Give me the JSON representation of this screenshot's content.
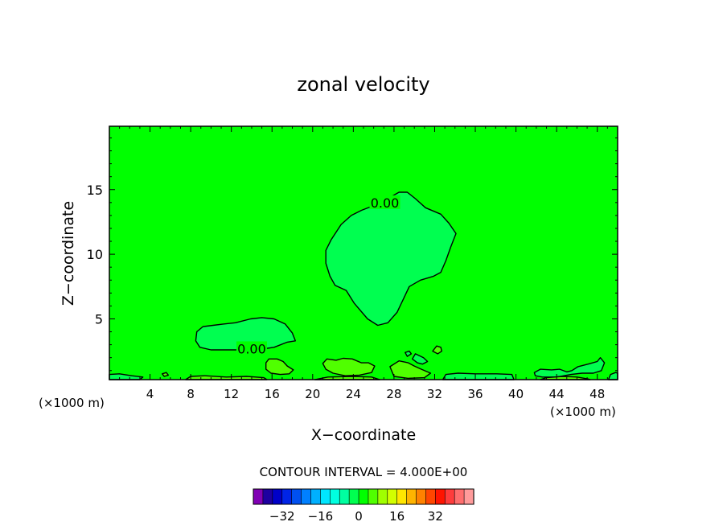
{
  "chart_data": {
    "type": "heatmap",
    "title": "zonal velocity",
    "xlabel": "X−coordinate",
    "ylabel": "Z−coordinate",
    "x_unit_left": "(×1000 m)",
    "x_unit_right": "(×1000 m)",
    "xlim": [
      0,
      50
    ],
    "ylim": [
      0.3,
      19.9
    ],
    "x_ticks": [
      4,
      8,
      12,
      16,
      20,
      24,
      28,
      32,
      36,
      40,
      44,
      48
    ],
    "x_tick_labels": [
      "4",
      "8",
      "12",
      "16",
      "20",
      "24",
      "28",
      "32",
      "36",
      "40",
      "44",
      "48"
    ],
    "y_ticks": [
      5,
      10,
      15
    ],
    "y_tick_labels": [
      "5",
      "10",
      "15"
    ],
    "background_value": 2,
    "contour_interval_text": "CONTOUR INTERVAL = 4.000E+00",
    "contour_labels": [
      {
        "text": "0.00",
        "x": 27.1,
        "y": 14.0
      },
      {
        "text": "0.00",
        "x": 14.0,
        "y": 2.7
      }
    ],
    "regions": [
      {
        "value": -2,
        "points": [
          [
            21.8,
            11.1
          ],
          [
            21.3,
            10.3
          ],
          [
            21.3,
            9.3
          ],
          [
            21.7,
            8.3
          ],
          [
            22.2,
            7.6
          ],
          [
            23.3,
            7.2
          ],
          [
            24.1,
            6.2
          ],
          [
            25.4,
            5.0
          ],
          [
            26.4,
            4.5
          ],
          [
            27.4,
            4.7
          ],
          [
            28.3,
            5.5
          ],
          [
            28.9,
            6.5
          ],
          [
            29.5,
            7.5
          ],
          [
            30.6,
            8.0
          ],
          [
            31.9,
            8.3
          ],
          [
            32.6,
            8.6
          ],
          [
            33.1,
            9.5
          ],
          [
            33.6,
            10.6
          ],
          [
            34.1,
            11.6
          ],
          [
            33.4,
            12.4
          ],
          [
            32.6,
            13.1
          ],
          [
            31.1,
            13.6
          ],
          [
            30.1,
            14.3
          ],
          [
            29.3,
            14.8
          ],
          [
            28.5,
            14.8
          ],
          [
            27.6,
            14.4
          ],
          [
            26.7,
            14.2
          ],
          [
            25.8,
            13.7
          ],
          [
            24.8,
            13.4
          ],
          [
            23.8,
            13.0
          ],
          [
            22.8,
            12.3
          ]
        ]
      },
      {
        "value": -2,
        "points": [
          [
            8.6,
            4.0
          ],
          [
            8.5,
            3.3
          ],
          [
            8.9,
            2.8
          ],
          [
            10.0,
            2.6
          ],
          [
            11.4,
            2.6
          ],
          [
            12.8,
            2.6
          ],
          [
            14.5,
            2.6
          ],
          [
            16.2,
            2.8
          ],
          [
            17.5,
            3.2
          ],
          [
            18.3,
            3.3
          ],
          [
            18.0,
            3.9
          ],
          [
            17.3,
            4.6
          ],
          [
            16.2,
            5.0
          ],
          [
            15.0,
            5.1
          ],
          [
            13.9,
            5.0
          ],
          [
            12.4,
            4.7
          ],
          [
            11.2,
            4.6
          ],
          [
            10.2,
            4.5
          ],
          [
            9.2,
            4.4
          ]
        ]
      },
      {
        "value": -2,
        "points": [
          [
            41.8,
            0.85
          ],
          [
            42.4,
            1.1
          ],
          [
            43.5,
            1.05
          ],
          [
            44.3,
            1.1
          ],
          [
            45.0,
            0.9
          ],
          [
            45.5,
            1.0
          ],
          [
            46.1,
            1.3
          ],
          [
            47.1,
            1.5
          ],
          [
            48.0,
            1.7
          ],
          [
            48.3,
            2.0
          ],
          [
            48.7,
            1.6
          ],
          [
            48.4,
            1.0
          ],
          [
            47.6,
            0.8
          ],
          [
            46.5,
            0.8
          ],
          [
            45.4,
            0.7
          ],
          [
            44.0,
            0.5
          ],
          [
            42.6,
            0.5
          ],
          [
            41.9,
            0.6
          ]
        ]
      },
      {
        "value": -2,
        "points": [
          [
            30.1,
            2.3
          ],
          [
            30.9,
            2.0
          ],
          [
            31.3,
            1.7
          ],
          [
            30.8,
            1.5
          ],
          [
            30.3,
            1.6
          ],
          [
            29.8,
            1.9
          ]
        ]
      },
      {
        "value": -2,
        "points": [
          [
            29.1,
            2.4
          ],
          [
            29.5,
            2.5
          ],
          [
            29.7,
            2.3
          ],
          [
            29.3,
            2.1
          ]
        ]
      },
      {
        "value": -2,
        "points": [
          [
            0,
            0.7
          ],
          [
            1.0,
            0.75
          ],
          [
            2.2,
            0.6
          ],
          [
            3.3,
            0.5
          ],
          [
            3.0,
            0.3
          ],
          [
            0,
            0.3
          ]
        ]
      },
      {
        "value": -2,
        "points": [
          [
            49.1,
            0.3
          ],
          [
            49.3,
            0.7
          ],
          [
            49.8,
            0.85
          ],
          [
            50,
            0.8
          ],
          [
            50,
            0.3
          ]
        ]
      },
      {
        "value": -2,
        "points": [
          [
            32.8,
            0.3
          ],
          [
            33.1,
            0.7
          ],
          [
            34.3,
            0.8
          ],
          [
            36.0,
            0.75
          ],
          [
            38.1,
            0.75
          ],
          [
            39.6,
            0.7
          ],
          [
            39.8,
            0.3
          ]
        ]
      },
      {
        "value": 6,
        "points": [
          [
            15.4,
            1.6
          ],
          [
            15.7,
            1.9
          ],
          [
            16.5,
            1.9
          ],
          [
            17.1,
            1.7
          ],
          [
            17.5,
            1.35
          ],
          [
            18.1,
            1.05
          ],
          [
            17.7,
            0.75
          ],
          [
            16.8,
            0.7
          ],
          [
            15.9,
            0.8
          ],
          [
            15.4,
            1.1
          ]
        ]
      },
      {
        "value": 6,
        "points": [
          [
            21.0,
            1.55
          ],
          [
            21.4,
            1.9
          ],
          [
            22.3,
            1.8
          ],
          [
            23.0,
            1.95
          ],
          [
            23.9,
            1.9
          ],
          [
            24.8,
            1.6
          ],
          [
            25.5,
            1.6
          ],
          [
            26.1,
            1.35
          ],
          [
            25.8,
            0.85
          ],
          [
            24.6,
            0.65
          ],
          [
            23.2,
            0.6
          ],
          [
            22.0,
            0.8
          ],
          [
            21.3,
            1.1
          ]
        ]
      },
      {
        "value": 6,
        "points": [
          [
            27.6,
            1.3
          ],
          [
            28.5,
            1.75
          ],
          [
            29.4,
            1.6
          ],
          [
            30.0,
            1.35
          ],
          [
            30.7,
            1.1
          ],
          [
            31.6,
            0.8
          ],
          [
            31.0,
            0.45
          ],
          [
            29.4,
            0.4
          ],
          [
            28.0,
            0.55
          ]
        ]
      },
      {
        "value": 6,
        "points": [
          [
            31.8,
            2.5
          ],
          [
            32.2,
            2.9
          ],
          [
            32.6,
            2.8
          ],
          [
            32.7,
            2.5
          ],
          [
            32.3,
            2.3
          ]
        ]
      },
      {
        "value": 6,
        "points": [
          [
            7.5,
            0.3
          ],
          [
            8.0,
            0.55
          ],
          [
            9.4,
            0.6
          ],
          [
            11.5,
            0.5
          ],
          [
            13.5,
            0.55
          ],
          [
            15.2,
            0.45
          ],
          [
            15.5,
            0.3
          ]
        ]
      },
      {
        "value": 6,
        "points": [
          [
            20.2,
            0.3
          ],
          [
            21.5,
            0.5
          ],
          [
            23.8,
            0.55
          ],
          [
            25.8,
            0.5
          ],
          [
            26.6,
            0.3
          ]
        ]
      },
      {
        "value": 6,
        "points": [
          [
            42.4,
            0.3
          ],
          [
            43.0,
            0.45
          ],
          [
            44.6,
            0.55
          ],
          [
            46.0,
            0.5
          ],
          [
            47.1,
            0.35
          ],
          [
            47.3,
            0.3
          ]
        ]
      },
      {
        "value": 6,
        "points": [
          [
            5.2,
            0.75
          ],
          [
            5.6,
            0.85
          ],
          [
            5.8,
            0.65
          ],
          [
            5.4,
            0.55
          ]
        ]
      }
    ],
    "colorbar": {
      "colors": [
        "#8000b4",
        "#1e00a0",
        "#0000c8",
        "#0024e6",
        "#0050f0",
        "#0080ff",
        "#00b0ff",
        "#00e6ff",
        "#00ffe0",
        "#00ffa0",
        "#00ff50",
        "#00ff00",
        "#50ff00",
        "#a0ff00",
        "#d2ff00",
        "#ffe600",
        "#ffb400",
        "#ff8200",
        "#ff4600",
        "#ff1400",
        "#ff3c3c",
        "#ff6e6e",
        "#ff9b9b"
      ],
      "tick_values": [
        -32,
        -16,
        0,
        16,
        32
      ],
      "tick_labels": [
        "−32",
        "−16",
        "0",
        "16",
        "32"
      ]
    }
  }
}
